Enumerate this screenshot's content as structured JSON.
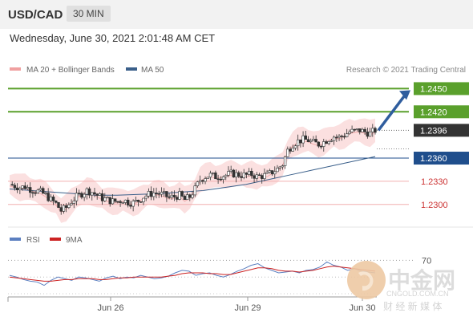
{
  "header": {
    "symbol": "USD/CAD",
    "timeframe": "30 MIN"
  },
  "date_text": "Wednesday, June 30, 2021 2:01:48 AM CET",
  "legend": {
    "ma20": "MA 20 + Bollinger Bands",
    "ma50": "MA 50",
    "credit": "Research © 2021 Trading Central",
    "colors": {
      "ma20": "#f0a0a0",
      "ma50": "#3a5f8a"
    }
  },
  "rsi_legend": {
    "rsi": "RSI",
    "ma9": "9MA",
    "colors": {
      "rsi": "#5b7fc0",
      "ma9": "#cc2222"
    }
  },
  "watermark": {
    "brand": "中金网",
    "site": "CNGOLD.COM.CN",
    "slogan": "财 经 新 媒 体"
  },
  "chart_data": [
    {
      "type": "candlestick",
      "title": "USD/CAD",
      "timeframe": "30 MIN",
      "x_tick_labels": [
        "Jun 26",
        "Jun 29",
        "Jun 30"
      ],
      "ylim": [
        1.228,
        1.2465
      ],
      "levels": [
        {
          "label": "1.2450",
          "value": 1.245,
          "kind": "resistance",
          "color": "#5aa02c"
        },
        {
          "label": "1.2420",
          "value": 1.242,
          "kind": "resistance",
          "color": "#5aa02c"
        },
        {
          "label": "1.2396",
          "value": 1.2396,
          "kind": "last",
          "color": "#333333"
        },
        {
          "label": "1.2360",
          "value": 1.236,
          "kind": "pivot",
          "color": "#1f4e8c"
        },
        {
          "label": "1.2330",
          "value": 1.233,
          "kind": "support",
          "color": "#cc3333"
        },
        {
          "label": "1.2300",
          "value": 1.23,
          "kind": "support",
          "color": "#cc3333"
        }
      ],
      "close_series": [
        1.2326,
        1.2324,
        1.2322,
        1.2323,
        1.232,
        1.2318,
        1.2316,
        1.2312,
        1.2306,
        1.2301,
        1.2292,
        1.2296,
        1.2304,
        1.231,
        1.2314,
        1.2318,
        1.2316,
        1.2312,
        1.2308,
        1.2306,
        1.2304,
        1.2304,
        1.2306,
        1.2303,
        1.2302,
        1.2305,
        1.231,
        1.2313,
        1.2315,
        1.2314,
        1.2312,
        1.2309,
        1.231,
        1.2312,
        1.2306,
        1.231,
        1.232,
        1.2332,
        1.2336,
        1.2338,
        1.2336,
        1.2337,
        1.2338,
        1.234,
        1.2339,
        1.2338,
        1.2338,
        1.2339,
        1.2336,
        1.2337,
        1.2338,
        1.2342,
        1.2346,
        1.2352,
        1.237,
        1.2378,
        1.2382,
        1.2384,
        1.2383,
        1.238,
        1.2378,
        1.2381,
        1.2385,
        1.2388,
        1.2387,
        1.239,
        1.2394,
        1.2395,
        1.2396,
        1.2394,
        1.2392,
        1.2396
      ],
      "ma50_series": [
        1.232,
        1.2318,
        1.2316,
        1.2314,
        1.2312,
        1.2312,
        1.2313,
        1.2314,
        1.2316,
        1.2318,
        1.2322,
        1.2326,
        1.2332,
        1.2338,
        1.2344,
        1.235,
        1.2356,
        1.2362
      ],
      "forecast_arrow": {
        "from": 1.2396,
        "to": 1.245
      }
    },
    {
      "type": "line",
      "title": "RSI",
      "y_tick_labels": [
        "70"
      ],
      "series": [
        {
          "name": "RSI",
          "values": [
            52,
            50,
            47,
            45,
            44,
            40,
            46,
            50,
            48,
            46,
            50,
            49,
            47,
            45,
            49,
            51,
            48,
            50,
            49,
            52,
            50,
            48,
            49,
            51,
            55,
            58,
            57,
            52,
            54,
            55,
            52,
            50,
            53,
            57,
            60,
            64,
            66,
            61,
            58,
            55,
            56,
            57,
            55,
            58,
            59,
            62,
            68,
            64,
            62,
            58,
            60,
            57,
            56,
            55
          ]
        },
        {
          "name": "9MA",
          "values": [
            50,
            49,
            48,
            47,
            46,
            45,
            45,
            46,
            47,
            47,
            48,
            48,
            48,
            47,
            47,
            48,
            49,
            49,
            50,
            50,
            50,
            50,
            50,
            51,
            52,
            54,
            55,
            55,
            55,
            54,
            54,
            53,
            53,
            55,
            57,
            59,
            61,
            61,
            60,
            58,
            57,
            57,
            56,
            57,
            58,
            60,
            62,
            63,
            62,
            61,
            60,
            59,
            58,
            57
          ]
        }
      ]
    }
  ]
}
